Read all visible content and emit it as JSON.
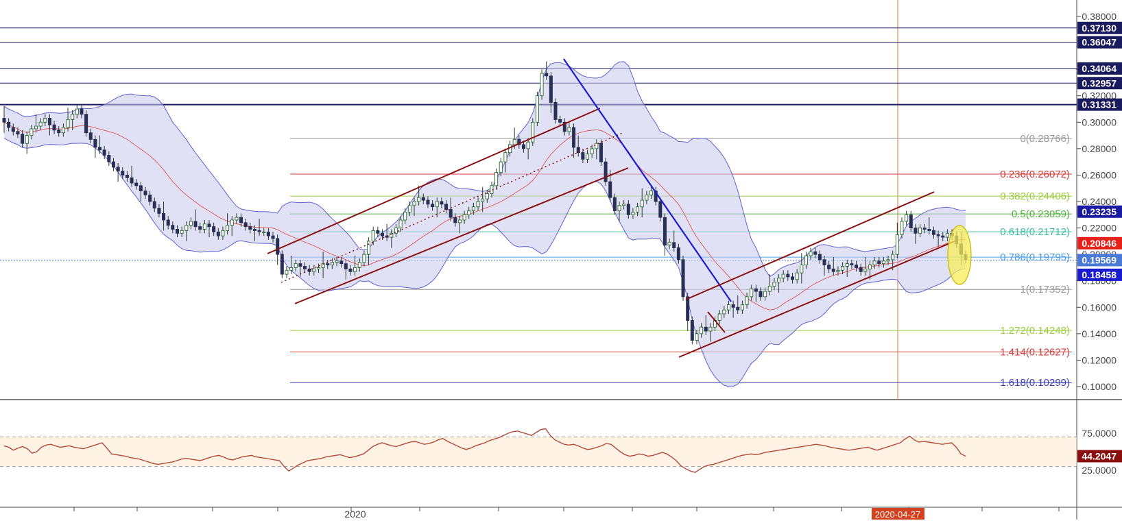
{
  "chart_data": [
    {
      "type": "candlestick",
      "panel": "price",
      "y_axis_ticks": [
        "0.38000",
        "0.34000",
        "0.32000",
        "0.30000",
        "0.28000",
        "0.26000",
        "0.24000",
        "0.22000",
        "0.20000",
        "0.18000",
        "0.16000",
        "0.14000",
        "0.12000",
        "0.10000"
      ],
      "ylim": [
        0.095,
        0.395
      ],
      "x_axis_label": "2020",
      "highlighted_date": "2020-04-27",
      "horizontal_levels": [
        {
          "value": 0.3713,
          "label": "0.37130",
          "color": "#1a1a5e"
        },
        {
          "value": 0.36047,
          "label": "0.36047",
          "color": "#1a1a5e"
        },
        {
          "value": 0.34064,
          "label": "0.34064",
          "color": "#1a1a5e"
        },
        {
          "value": 0.32957,
          "label": "0.32957",
          "color": "#1a1a5e"
        },
        {
          "value": 0.31331,
          "label": "0.31331",
          "color": "#1a1a5e"
        }
      ],
      "fibonacci": [
        {
          "value": 0.28766,
          "label": "0(0.28766)",
          "color": "#999999"
        },
        {
          "value": 0.26072,
          "label": "0.236(0.26072)",
          "color": "#d23c3c"
        },
        {
          "value": 0.24406,
          "label": "0.382(0.24406)",
          "color": "#9ccc3c"
        },
        {
          "value": 0.23059,
          "label": "0.5(0.23059)",
          "color": "#54b040"
        },
        {
          "value": 0.21712,
          "label": "0.618(0.21712)",
          "color": "#3cbfa0"
        },
        {
          "value": 0.19795,
          "label": "0.786(0.19795)",
          "color": "#4a9ce0"
        },
        {
          "value": 0.17352,
          "label": "1(0.17352)",
          "color": "#999999"
        },
        {
          "value": 0.14248,
          "label": "1.272(0.14248)",
          "color": "#9ccc3c"
        },
        {
          "value": 0.12627,
          "label": "1.414(0.12627)",
          "color": "#d23c3c"
        },
        {
          "value": 0.10299,
          "label": "1.618(0.10299)",
          "color": "#3c3cb4"
        }
      ],
      "price_badges": [
        {
          "value": 0.23235,
          "label": "0.23235",
          "color": "#1a1aa0"
        },
        {
          "value": 0.20846,
          "label": "0.20846",
          "color": "#e8201a"
        },
        {
          "value": 0.19569,
          "label": "0.19569",
          "color": "#4a7ad8"
        },
        {
          "value": 0.18458,
          "label": "0.18458",
          "color": "#1a1ad0"
        }
      ],
      "close_series": [
        0.3,
        0.296,
        0.293,
        0.291,
        0.284,
        0.29,
        0.295,
        0.297,
        0.3,
        0.303,
        0.298,
        0.294,
        0.292,
        0.296,
        0.302,
        0.306,
        0.31,
        0.306,
        0.292,
        0.287,
        0.281,
        0.279,
        0.275,
        0.27,
        0.266,
        0.263,
        0.26,
        0.258,
        0.254,
        0.252,
        0.248,
        0.245,
        0.24,
        0.235,
        0.231,
        0.226,
        0.222,
        0.219,
        0.216,
        0.218,
        0.222,
        0.225,
        0.221,
        0.219,
        0.223,
        0.221,
        0.217,
        0.214,
        0.218,
        0.222,
        0.226,
        0.228,
        0.224,
        0.221,
        0.219,
        0.218,
        0.217,
        0.217,
        0.214,
        0.212,
        0.2,
        0.185,
        0.188,
        0.19,
        0.193,
        0.191,
        0.189,
        0.187,
        0.189,
        0.19,
        0.193,
        0.192,
        0.194,
        0.195,
        0.193,
        0.189,
        0.187,
        0.19,
        0.194,
        0.2,
        0.21,
        0.218,
        0.216,
        0.214,
        0.213,
        0.216,
        0.22,
        0.226,
        0.232,
        0.237,
        0.24,
        0.243,
        0.241,
        0.238,
        0.236,
        0.24,
        0.238,
        0.234,
        0.228,
        0.224,
        0.226,
        0.23,
        0.233,
        0.236,
        0.24,
        0.242,
        0.246,
        0.252,
        0.262,
        0.27,
        0.277,
        0.283,
        0.287,
        0.283,
        0.28,
        0.285,
        0.3,
        0.32,
        0.337,
        0.335,
        0.315,
        0.302,
        0.3,
        0.293,
        0.296,
        0.281,
        0.277,
        0.272,
        0.276,
        0.28,
        0.284,
        0.27,
        0.255,
        0.243,
        0.233,
        0.237,
        0.238,
        0.23,
        0.232,
        0.236,
        0.241,
        0.245,
        0.248,
        0.24,
        0.228,
        0.207,
        0.209,
        0.205,
        0.196,
        0.168,
        0.15,
        0.135,
        0.14,
        0.145,
        0.142,
        0.145,
        0.15,
        0.155,
        0.158,
        0.162,
        0.16,
        0.158,
        0.162,
        0.168,
        0.174,
        0.172,
        0.168,
        0.172,
        0.176,
        0.179,
        0.182,
        0.185,
        0.183,
        0.181,
        0.186,
        0.192,
        0.199,
        0.202,
        0.2,
        0.196,
        0.192,
        0.189,
        0.187,
        0.188,
        0.191,
        0.193,
        0.192,
        0.19,
        0.187,
        0.189,
        0.192,
        0.195,
        0.193,
        0.195,
        0.196,
        0.2,
        0.215,
        0.225,
        0.23,
        0.22,
        0.216,
        0.22,
        0.219,
        0.218,
        0.215,
        0.214,
        0.213,
        0.216,
        0.214,
        0.208,
        0.2,
        0.196
      ]
    },
    {
      "type": "line",
      "panel": "rsi",
      "y_axis_ticks": [
        "75.0000",
        "25.0000"
      ],
      "ylim": [
        15,
        85
      ],
      "bands": [
        70,
        30
      ],
      "value_label": "44.2047",
      "values": [
        58,
        56,
        52,
        55,
        57,
        54,
        48,
        50,
        56,
        59,
        60,
        58,
        56,
        57,
        58,
        56,
        55,
        54,
        56,
        58,
        60,
        62,
        55,
        47,
        46,
        45,
        44,
        42,
        41,
        40,
        38,
        36,
        34,
        33,
        34,
        35,
        36,
        38,
        40,
        41,
        40,
        39,
        38,
        40,
        42,
        44,
        45,
        43,
        40,
        39,
        41,
        43,
        44,
        45,
        43,
        42,
        41,
        40,
        39,
        38,
        30,
        24,
        28,
        32,
        35,
        38,
        39,
        40,
        41,
        43,
        44,
        45,
        46,
        44,
        42,
        43,
        45,
        47,
        52,
        57,
        60,
        62,
        60,
        58,
        57,
        59,
        61,
        63,
        64,
        62,
        60,
        61,
        63,
        66,
        68,
        64,
        61,
        58,
        55,
        53,
        55,
        58,
        60,
        62,
        65,
        67,
        69,
        72,
        75,
        77,
        78,
        76,
        74,
        72,
        76,
        80,
        81,
        72,
        66,
        63,
        60,
        59,
        60,
        58,
        55,
        53,
        54,
        56,
        58,
        61,
        60,
        55,
        50,
        46,
        44,
        45,
        47,
        46,
        44,
        45,
        47,
        49,
        47,
        43,
        38,
        31,
        27,
        24,
        22,
        26,
        30,
        32,
        33,
        35,
        37,
        39,
        41,
        43,
        45,
        46,
        47,
        46,
        47,
        49,
        50,
        51,
        52,
        53,
        54,
        55,
        56,
        57,
        58,
        59,
        60,
        59,
        58,
        56,
        55,
        54,
        53,
        52,
        53,
        54,
        55,
        56,
        54,
        52,
        54,
        56,
        58,
        60,
        62,
        67,
        71,
        66,
        63,
        64,
        63,
        62,
        61,
        60,
        61,
        62,
        56,
        47,
        44
      ]
    }
  ]
}
